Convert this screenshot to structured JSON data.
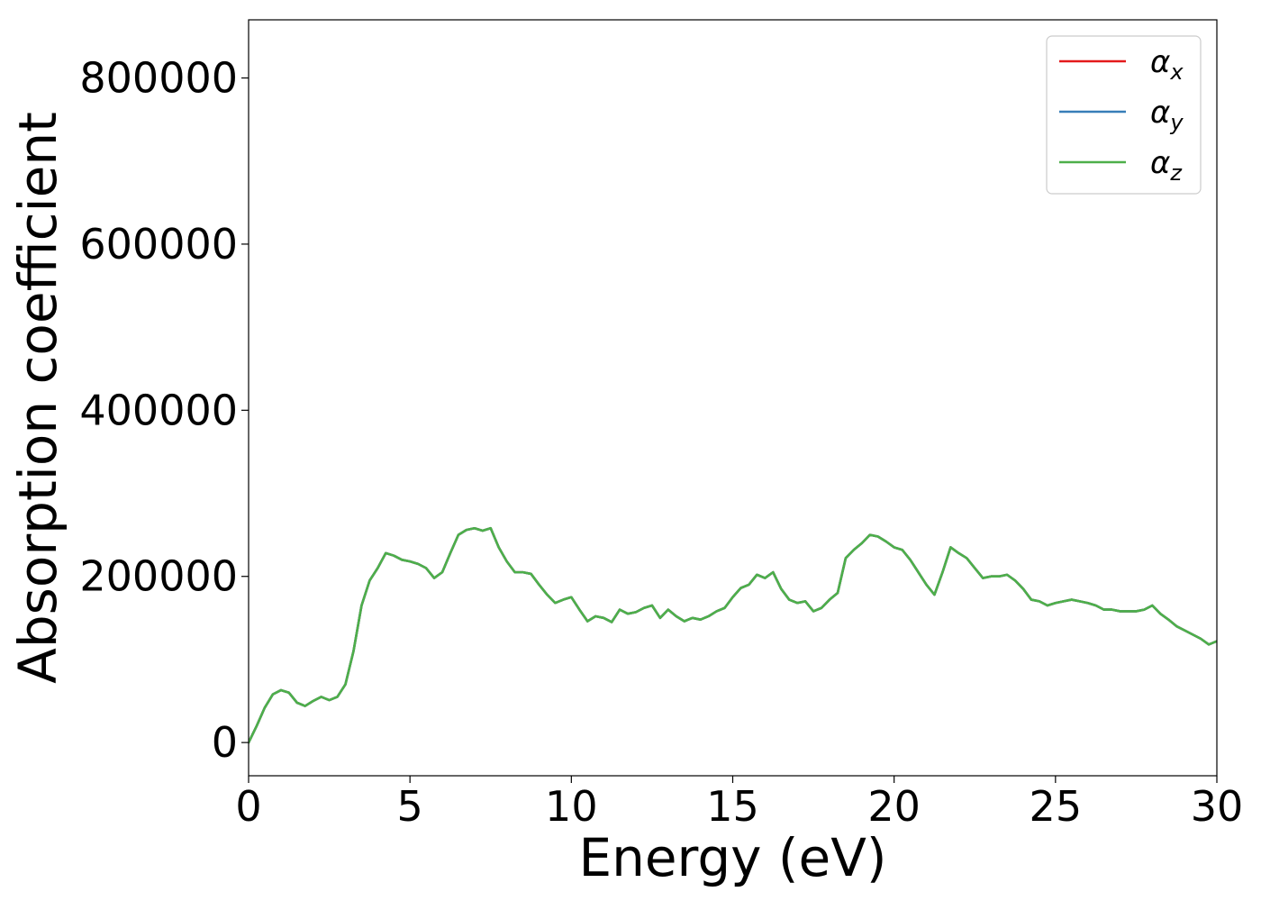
{
  "chart_data": {
    "type": "line",
    "title": "",
    "xlabel": "Energy (eV)",
    "ylabel": "Absorption coefficient",
    "xlim": [
      0,
      30
    ],
    "ylim": [
      -40000,
      870000
    ],
    "xticks": [
      0,
      5,
      10,
      15,
      20,
      25,
      30
    ],
    "yticks": [
      0,
      200000,
      400000,
      600000,
      800000
    ],
    "xtick_labels": [
      "0",
      "5",
      "10",
      "15",
      "20",
      "25",
      "30"
    ],
    "ytick_labels": [
      "0",
      "200000",
      "400000",
      "600000",
      "800000"
    ],
    "grid": false,
    "legend_position": "top-right",
    "colors": {
      "alpha_x": "#e41a1c",
      "alpha_y": "#377eb8",
      "alpha_z": "#4daf4a"
    },
    "x": [
      0,
      0.25,
      0.5,
      0.75,
      1.0,
      1.25,
      1.5,
      1.75,
      2.0,
      2.25,
      2.5,
      2.75,
      3.0,
      3.25,
      3.5,
      3.75,
      4.0,
      4.25,
      4.5,
      4.75,
      5.0,
      5.25,
      5.5,
      5.75,
      6.0,
      6.25,
      6.5,
      6.75,
      7.0,
      7.25,
      7.5,
      7.75,
      8.0,
      8.25,
      8.5,
      8.75,
      9.0,
      9.25,
      9.5,
      9.75,
      10.0,
      10.25,
      10.5,
      10.75,
      11.0,
      11.25,
      11.5,
      11.75,
      12.0,
      12.25,
      12.5,
      12.75,
      13.0,
      13.25,
      13.5,
      13.75,
      14.0,
      14.25,
      14.5,
      14.75,
      15.0,
      15.25,
      15.5,
      15.75,
      16.0,
      16.25,
      16.5,
      16.75,
      17.0,
      17.25,
      17.5,
      17.75,
      18.0,
      18.25,
      18.5,
      18.75,
      19.0,
      19.25,
      19.5,
      19.75,
      20.0,
      20.25,
      20.5,
      20.75,
      21.0,
      21.25,
      21.5,
      21.75,
      22.0,
      22.25,
      22.5,
      22.75,
      23.0,
      23.25,
      23.5,
      23.75,
      24.0,
      24.25,
      24.5,
      24.75,
      25.0,
      25.25,
      25.5,
      25.75,
      26.0,
      26.25,
      26.5,
      26.75,
      27.0,
      27.25,
      27.5,
      27.75,
      28.0,
      28.25,
      28.5,
      28.75,
      29.0,
      29.25,
      29.5,
      29.75,
      30.0
    ],
    "series": [
      {
        "name": "α_x",
        "legend_base": "α",
        "legend_sub": "x",
        "color": "#e41a1c",
        "values": [
          0,
          20000,
          42000,
          58000,
          63000,
          60000,
          48000,
          44000,
          50000,
          55000,
          51000,
          55000,
          70000,
          110000,
          165000,
          195000,
          210000,
          228000,
          225000,
          220000,
          218000,
          215000,
          210000,
          198000,
          205000,
          228000,
          250000,
          256000,
          258000,
          255000,
          258000,
          235000,
          218000,
          205000,
          205000,
          203000,
          190000,
          178000,
          168000,
          172000,
          175000,
          160000,
          146000,
          152000,
          150000,
          145000,
          160000,
          155000,
          157000,
          162000,
          165000,
          150000,
          160000,
          152000,
          146000,
          150000,
          148000,
          152000,
          158000,
          162000,
          175000,
          186000,
          190000,
          202000,
          198000,
          205000,
          185000,
          172000,
          168000,
          170000,
          158000,
          162000,
          172000,
          180000,
          222000,
          232000,
          240000,
          250000,
          248000,
          242000,
          235000,
          232000,
          220000,
          205000,
          190000,
          178000,
          205000,
          235000,
          228000,
          222000,
          210000,
          198000,
          200000,
          200000,
          202000,
          195000,
          185000,
          172000,
          170000,
          165000,
          168000,
          170000,
          172000,
          170000,
          168000,
          165000,
          160000,
          160000,
          158000,
          158000,
          158000,
          160000,
          165000,
          155000,
          148000,
          140000,
          135000,
          130000,
          125000,
          118000,
          122000
        ]
      },
      {
        "name": "α_y",
        "legend_base": "α",
        "legend_sub": "y",
        "color": "#377eb8",
        "values": [
          0,
          20000,
          42000,
          58000,
          63000,
          60000,
          48000,
          44000,
          50000,
          55000,
          51000,
          55000,
          70000,
          110000,
          165000,
          195000,
          210000,
          228000,
          225000,
          220000,
          218000,
          215000,
          210000,
          198000,
          205000,
          228000,
          250000,
          256000,
          258000,
          255000,
          258000,
          235000,
          218000,
          205000,
          205000,
          203000,
          190000,
          178000,
          168000,
          172000,
          175000,
          160000,
          146000,
          152000,
          150000,
          145000,
          160000,
          155000,
          157000,
          162000,
          165000,
          150000,
          160000,
          152000,
          146000,
          150000,
          148000,
          152000,
          158000,
          162000,
          175000,
          186000,
          190000,
          202000,
          198000,
          205000,
          185000,
          172000,
          168000,
          170000,
          158000,
          162000,
          172000,
          180000,
          222000,
          232000,
          240000,
          250000,
          248000,
          242000,
          235000,
          232000,
          220000,
          205000,
          190000,
          178000,
          205000,
          235000,
          228000,
          222000,
          210000,
          198000,
          200000,
          200000,
          202000,
          195000,
          185000,
          172000,
          170000,
          165000,
          168000,
          170000,
          172000,
          170000,
          168000,
          165000,
          160000,
          160000,
          158000,
          158000,
          158000,
          160000,
          165000,
          155000,
          148000,
          140000,
          135000,
          130000,
          125000,
          118000,
          122000
        ]
      },
      {
        "name": "α_z",
        "legend_base": "α",
        "legend_sub": "z",
        "color": "#4daf4a",
        "values": [
          0,
          20000,
          42000,
          58000,
          63000,
          60000,
          48000,
          44000,
          50000,
          55000,
          51000,
          55000,
          70000,
          110000,
          165000,
          195000,
          210000,
          228000,
          225000,
          220000,
          218000,
          215000,
          210000,
          198000,
          205000,
          228000,
          250000,
          256000,
          258000,
          255000,
          258000,
          235000,
          218000,
          205000,
          205000,
          203000,
          190000,
          178000,
          168000,
          172000,
          175000,
          160000,
          146000,
          152000,
          150000,
          145000,
          160000,
          155000,
          157000,
          162000,
          165000,
          150000,
          160000,
          152000,
          146000,
          150000,
          148000,
          152000,
          158000,
          162000,
          175000,
          186000,
          190000,
          202000,
          198000,
          205000,
          185000,
          172000,
          168000,
          170000,
          158000,
          162000,
          172000,
          180000,
          222000,
          232000,
          240000,
          250000,
          248000,
          242000,
          235000,
          232000,
          220000,
          205000,
          190000,
          178000,
          205000,
          235000,
          228000,
          222000,
          210000,
          198000,
          200000,
          200000,
          202000,
          195000,
          185000,
          172000,
          170000,
          165000,
          168000,
          170000,
          172000,
          170000,
          168000,
          165000,
          160000,
          160000,
          158000,
          158000,
          158000,
          160000,
          165000,
          155000,
          148000,
          140000,
          135000,
          130000,
          125000,
          118000,
          122000
        ]
      }
    ]
  }
}
